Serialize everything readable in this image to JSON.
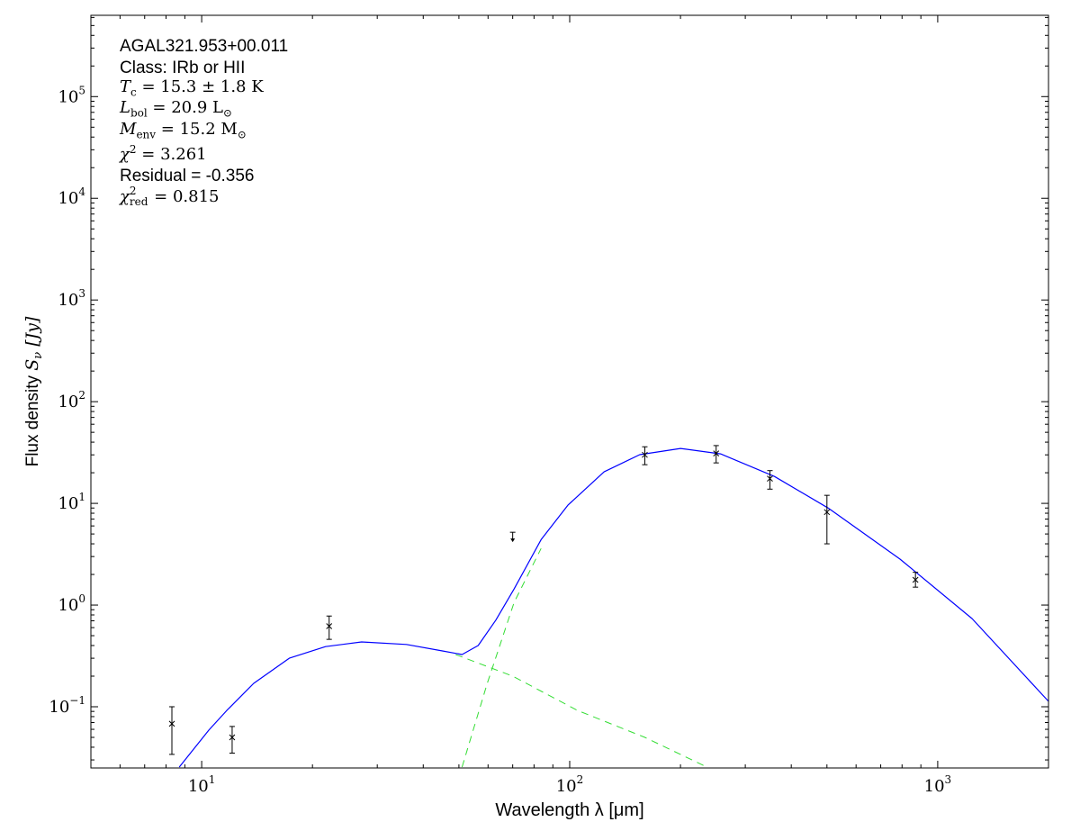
{
  "chart_data": {
    "type": "scatter",
    "xlabel": "Wavelength λ [μm]",
    "ylabel_text": "Flux density",
    "ylabel_symbol": "S",
    "ylabel_sub": "ν",
    "ylabel_unit": "[Jy]",
    "xscale": "log",
    "yscale": "log",
    "xlim": [
      5,
      2000
    ],
    "ylim": [
      0.025,
      630000
    ],
    "xticks": [
      {
        "value": 10,
        "base": "10",
        "exp": "1"
      },
      {
        "value": 100,
        "base": "10",
        "exp": "2"
      },
      {
        "value": 1000,
        "base": "10",
        "exp": "3"
      }
    ],
    "yticks": [
      {
        "value": 0.1,
        "base": "10",
        "exp": "−1"
      },
      {
        "value": 1,
        "base": "10",
        "exp": "0"
      },
      {
        "value": 10,
        "base": "10",
        "exp": "1"
      },
      {
        "value": 100,
        "base": "10",
        "exp": "2"
      },
      {
        "value": 1000,
        "base": "10",
        "exp": "3"
      },
      {
        "value": 10000,
        "base": "10",
        "exp": "4"
      },
      {
        "value": 100000,
        "base": "10",
        "exp": "5"
      }
    ],
    "grid": false,
    "colors": {
      "model": "#0000ff",
      "components": "#33dd33",
      "points": "#000000"
    },
    "points": [
      {
        "x": 8.3,
        "y": 0.068,
        "ylo": 0.034,
        "yhi": 0.1
      },
      {
        "x": 12.1,
        "y": 0.05,
        "ylo": 0.035,
        "yhi": 0.064
      },
      {
        "x": 22.2,
        "y": 0.62,
        "ylo": 0.46,
        "yhi": 0.78
      },
      {
        "x": 160,
        "y": 30,
        "ylo": 24,
        "yhi": 36
      },
      {
        "x": 250,
        "y": 31,
        "ylo": 25,
        "yhi": 37
      },
      {
        "x": 350,
        "y": 17.5,
        "ylo": 13.8,
        "yhi": 21
      },
      {
        "x": 500,
        "y": 8.2,
        "ylo": 4,
        "yhi": 12
      },
      {
        "x": 870,
        "y": 1.77,
        "ylo": 1.5,
        "yhi": 2.1
      }
    ],
    "upper_limits": [
      {
        "x": 70,
        "y": 5.2
      }
    ],
    "model": {
      "x": [
        8.69,
        10.46,
        11.7,
        13.85,
        17.3,
        21.7,
        27.2,
        36.0,
        45.1,
        51,
        56.4,
        63,
        70.6,
        83.6,
        98.9,
        124,
        155,
        200,
        257,
        360,
        504,
        790,
        1240,
        2000
      ],
      "y": [
        0.0255,
        0.059,
        0.092,
        0.17,
        0.3,
        0.39,
        0.434,
        0.41,
        0.354,
        0.326,
        0.4,
        0.71,
        1.44,
        4.4,
        9.6,
        20.4,
        30.1,
        34.7,
        30.7,
        18.4,
        9.0,
        2.83,
        0.736,
        0.113
      ]
    },
    "warm_component": {
      "x": [
        49,
        70,
        105,
        160,
        236
      ],
      "y": [
        0.326,
        0.2,
        0.092,
        0.05,
        0.0255
      ]
    },
    "cold_component": {
      "x": [
        51,
        59.7,
        70.6,
        83.6
      ],
      "y": [
        0.0255,
        0.17,
        1.06,
        3.6
      ]
    }
  },
  "annotations": {
    "source": "AGAL321.953+00.011",
    "class": "Class: IRb or HII",
    "tc": {
      "sym": "T",
      "sub": "c",
      "text": " = 15.3 ± 1.8 K"
    },
    "lbol": {
      "sym": "L",
      "sub": "bol",
      "text": " = 20.9 L",
      "tail": "⊙"
    },
    "menv": {
      "sym": "M",
      "sub": "env",
      "text": " = 15.2 M",
      "tail": "⊙"
    },
    "chi2": {
      "sym": "χ",
      "sup": "2",
      "text": " = 3.261"
    },
    "residual": "Residual = -0.356",
    "chi2red": {
      "sym": "χ",
      "sup": "2",
      "sub": "red",
      "text": " = 0.815"
    }
  }
}
